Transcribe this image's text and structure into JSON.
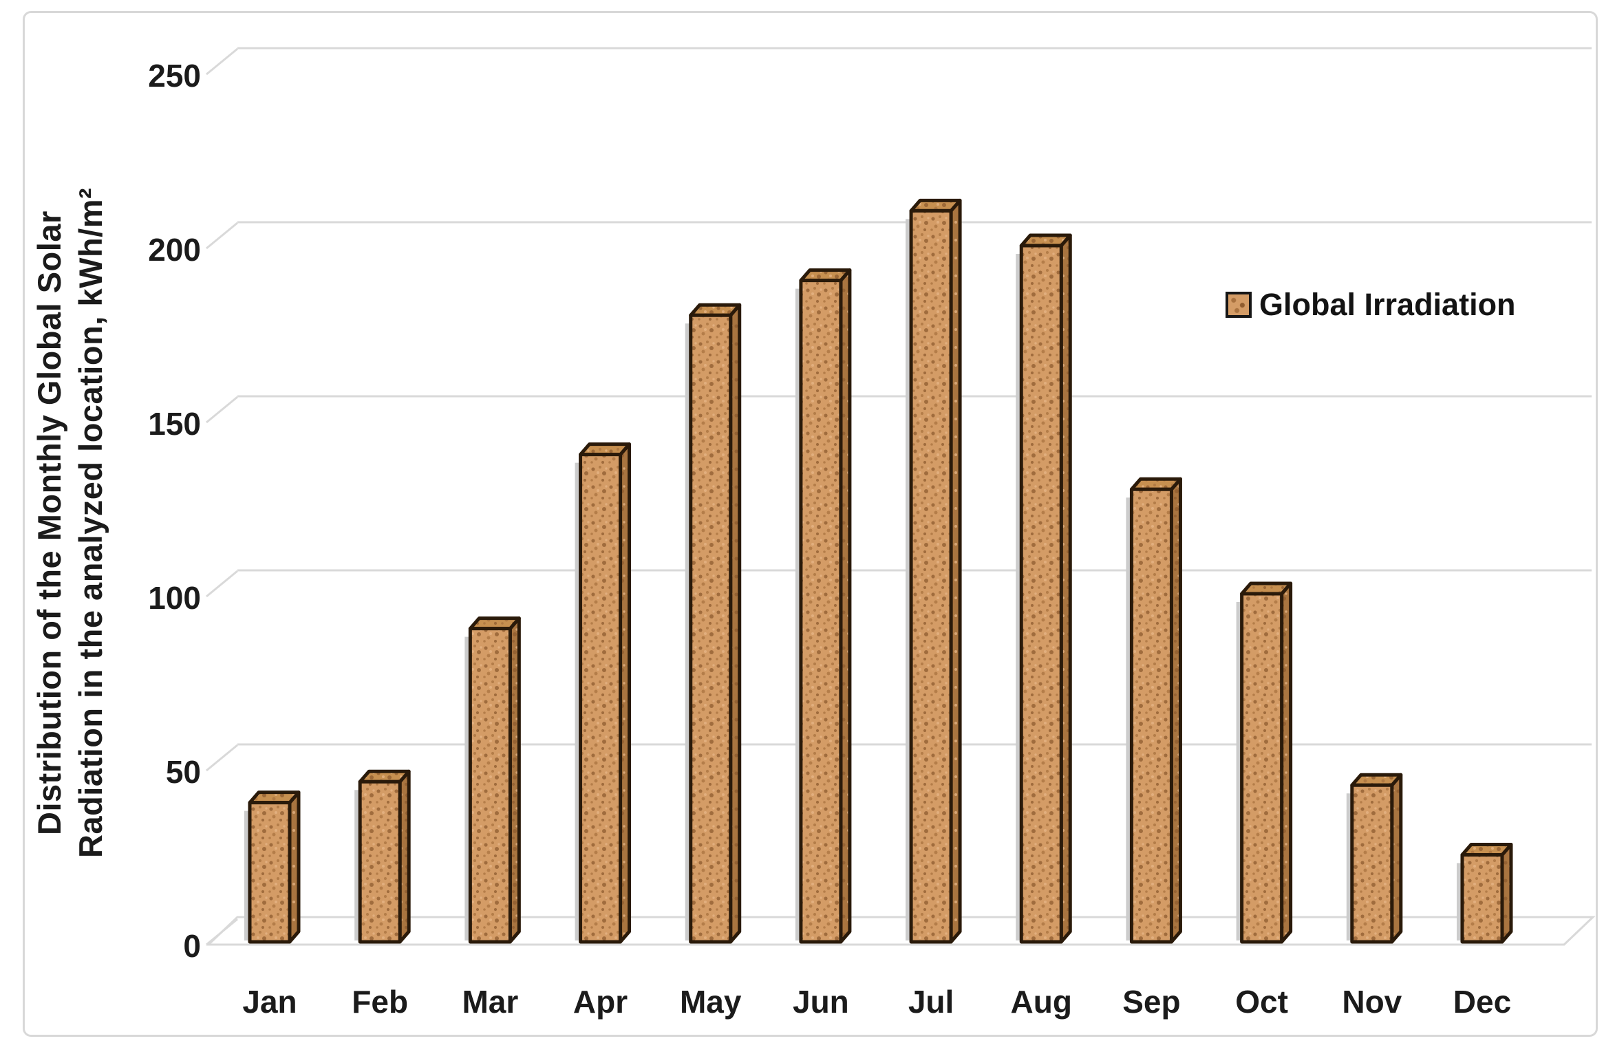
{
  "figure": {
    "background": "#ffffff",
    "frame_color": "#d8d8d8"
  },
  "y_axis": {
    "title_line1": "Distribution of the Monthly Global Solar",
    "title_line2": "Radiation in the analyzed location, kWh/m²"
  },
  "legend": {
    "label": "Global Irradiation"
  },
  "chart_data": {
    "type": "bar",
    "title": "",
    "xlabel": "",
    "ylabel": "Distribution of the Monthly Global Solar Radiation in the analyzed location, kWh/m²",
    "categories": [
      "Jan",
      "Feb",
      "Mar",
      "Apr",
      "May",
      "Jun",
      "Jul",
      "Aug",
      "Sep",
      "Oct",
      "Nov",
      "Dec"
    ],
    "series": [
      {
        "name": "Global Irradiation",
        "values": [
          40,
          46,
          90,
          140,
          180,
          190,
          210,
          200,
          130,
          100,
          45,
          25
        ]
      }
    ],
    "ylim": [
      0,
      250
    ],
    "yticks": [
      0,
      50,
      100,
      150,
      200,
      250
    ],
    "grid": true,
    "style": "3d-column",
    "legend_position": "right"
  },
  "colors": {
    "bar_front": "#d49c66",
    "bar_top": "#c79050",
    "bar_side": "#a97540",
    "bar_outline": "#2a1a0a",
    "speckle_dark": "#8f5c2e",
    "speckle_mid": "#a9723f",
    "speckle_light": "#e6b586",
    "grid": "#d9d9d9",
    "text": "#1b1b1b",
    "shadow": "#cccccc"
  }
}
